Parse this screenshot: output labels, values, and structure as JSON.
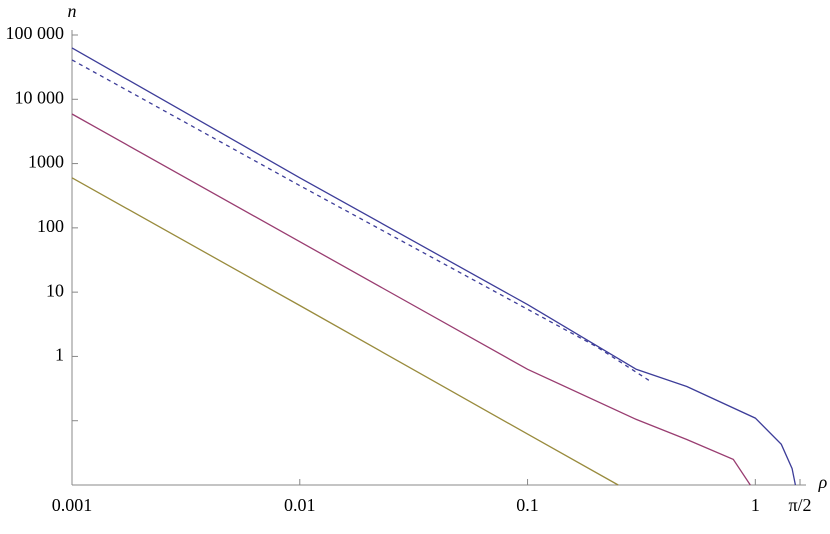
{
  "chart_data": {
    "type": "line",
    "x_label": "ρ",
    "y_label": "n",
    "x_log": true,
    "y_log": true,
    "xlim": [
      0.001,
      1.5708
    ],
    "ylim": [
      0.01,
      100000
    ],
    "xticks": [
      0.001,
      0.01,
      0.1,
      1,
      {
        "value": 1.5708,
        "label": "π/2"
      }
    ],
    "yticks": [
      1,
      10,
      100,
      1000,
      {
        "value": 10000,
        "label": "10 000"
      },
      {
        "value": 100000,
        "label": "100 000"
      }
    ],
    "y_unlabeled_ticks": [
      0.1
    ],
    "series": [
      {
        "color": "#3d3d99",
        "dashed": false,
        "x": [
          0.001,
          0.01,
          0.1,
          0.3,
          0.5,
          1,
          1.3,
          1.45,
          1.5
        ],
        "values": [
          63000,
          600,
          6.4,
          0.63,
          0.34,
          0.11,
          0.043,
          0.018,
          0.01
        ]
      },
      {
        "color": "#3d3d99",
        "dashed": true,
        "x": [
          0.001,
          0.01,
          0.1,
          0.2,
          0.35
        ],
        "values": [
          41000,
          455,
          5.4,
          1.43,
          0.4
        ]
      },
      {
        "color": "#993d71",
        "dashed": false,
        "x": [
          0.001,
          0.01,
          0.1,
          0.3,
          0.5,
          0.8,
          0.95
        ],
        "values": [
          5900,
          61,
          0.63,
          0.105,
          0.051,
          0.025,
          0.01
        ]
      },
      {
        "color": "#998b3d",
        "dashed": false,
        "x": [
          0.001,
          0.01,
          0.1,
          0.25
        ],
        "values": [
          600,
          6.2,
          0.062,
          0.01
        ]
      }
    ]
  }
}
